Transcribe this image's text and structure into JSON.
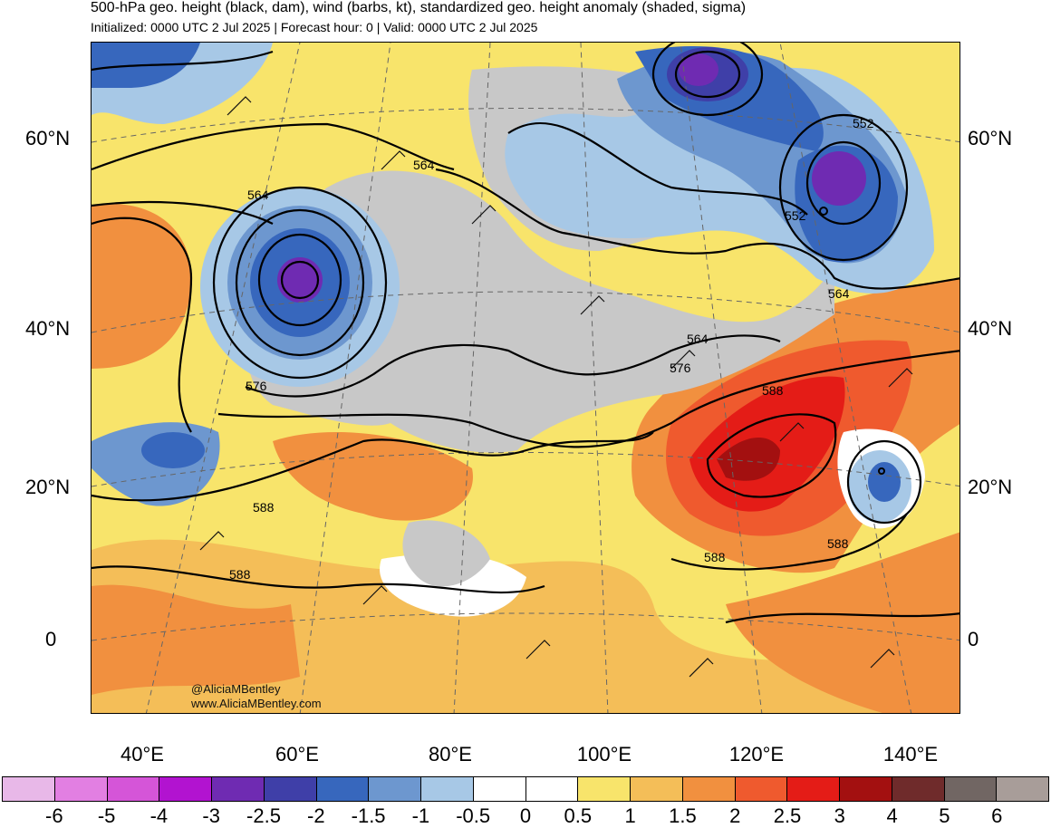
{
  "title": "500-hPa geo. height (black, dam), wind (barbs, kt), standardized geo. height anomaly (shaded, sigma)",
  "subtitle": "Initialized: 0000 UTC 2 Jul 2025 | Forecast hour: 0 | Valid: 0000 UTC 2 Jul 2025",
  "credits": [
    "@AliciaMBentley",
    "www.AliciaMBentley.com"
  ],
  "latitude_labels": {
    "left": [
      "60°N",
      "40°N",
      "20°N",
      "0"
    ],
    "right": [
      "60°N",
      "40°N",
      "20°N",
      "0"
    ]
  },
  "longitude_labels": [
    "40°E",
    "60°E",
    "80°E",
    "100°E",
    "120°E",
    "140°E"
  ],
  "contour_labels": [
    "564",
    "564",
    "576",
    "588",
    "588",
    "564",
    "576",
    "588",
    "552",
    "552",
    "564",
    "588",
    "588"
  ],
  "colorbar": {
    "labels": [
      "-6",
      "-5",
      "-4",
      "-3",
      "-2.5",
      "-2",
      "-1.5",
      "-1",
      "-0.5",
      "0",
      "0.5",
      "1",
      "1.5",
      "2",
      "2.5",
      "3",
      "4",
      "5",
      "6"
    ],
    "colors": [
      "#e8b8e8",
      "#e27fe2",
      "#d555d8",
      "#b213d0",
      "#6f2bb2",
      "#3f3fa8",
      "#3767bd",
      "#6d97cf",
      "#a7c8e6",
      "#ffffff",
      "#ffffff",
      "#f8e46b",
      "#f4be58",
      "#f1903f",
      "#ef5a2e",
      "#e41c17",
      "#a31010",
      "#6f2b2b",
      "#716663",
      "#a89d99"
    ]
  }
}
